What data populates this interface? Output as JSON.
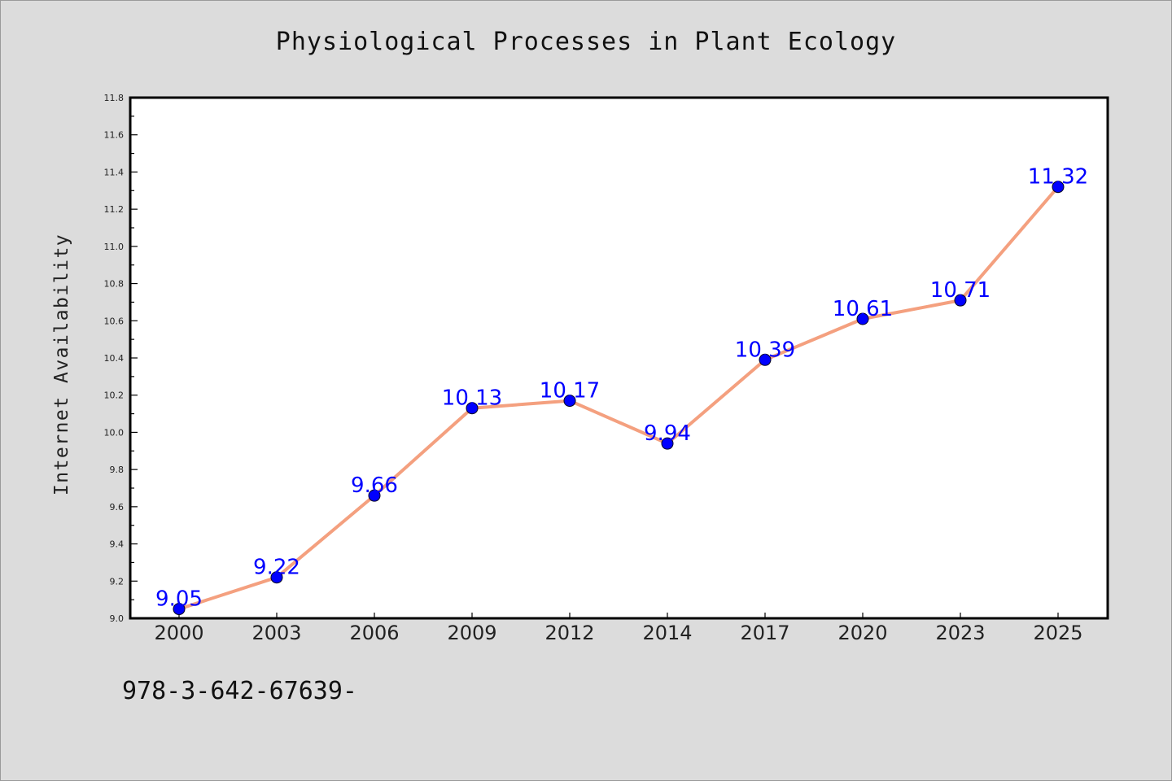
{
  "chart_data": {
    "type": "line",
    "title": "Physiological Processes in Plant Ecology",
    "xlabel": "",
    "ylabel": "Internet Availability",
    "categories": [
      "2000",
      "2003",
      "2006",
      "2009",
      "2012",
      "2014",
      "2017",
      "2020",
      "2023",
      "2025"
    ],
    "series": [
      {
        "values": [
          9.05,
          9.22,
          9.66,
          10.13,
          10.17,
          9.94,
          10.39,
          10.61,
          10.71,
          11.32
        ],
        "line_color": "#f4a07f",
        "marker_color": "#0000ff"
      }
    ],
    "data_labels": [
      "9.05",
      "9.22",
      "9.66",
      "10.13",
      "10.17",
      "9.94",
      "10.39",
      "10.61",
      "10.71",
      "11.32"
    ],
    "ylim": [
      9.0,
      11.8
    ],
    "yticks": [
      "9.0",
      "9.2",
      "9.4",
      "9.6",
      "9.8",
      "10.0",
      "10.2",
      "10.4",
      "10.6",
      "10.8",
      "11.0",
      "11.2",
      "11.4",
      "11.6",
      "11.8"
    ],
    "grid": false,
    "legend": "none"
  },
  "footer": {
    "code": "978-3-642-67639-"
  },
  "colors": {
    "background": "#dcdcdc",
    "plot_background": "#ffffff",
    "axis": "#000000"
  }
}
